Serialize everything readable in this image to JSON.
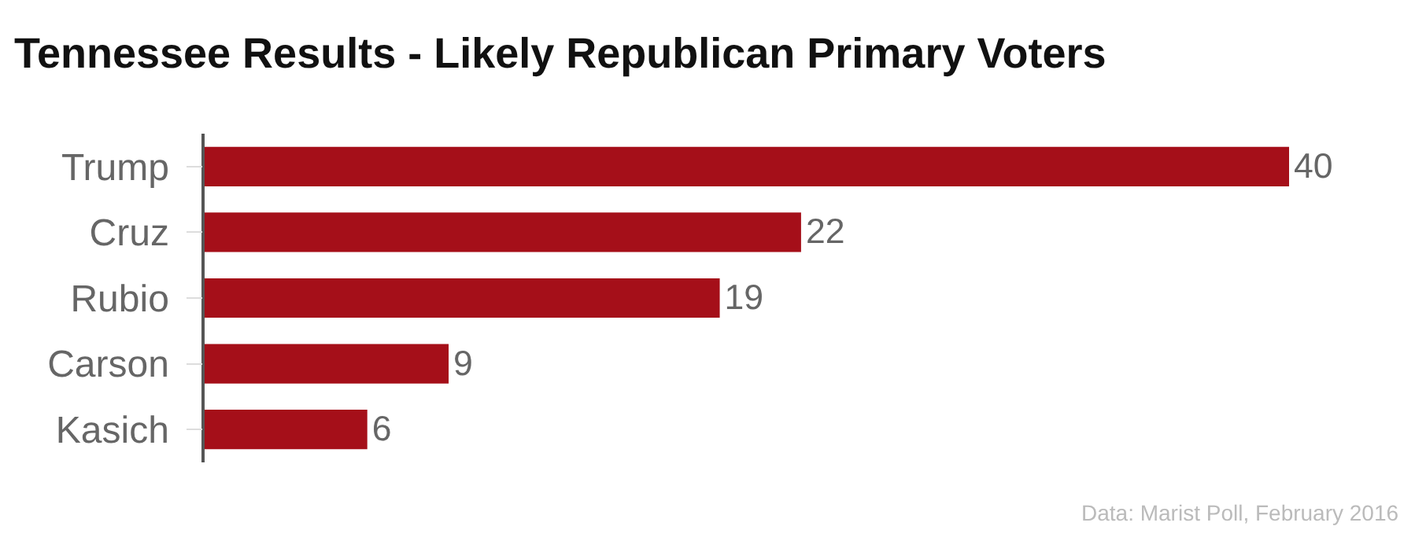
{
  "chart_data": {
    "type": "bar",
    "orientation": "horizontal",
    "title": "Tennessee Results - Likely Republican Primary Voters",
    "categories": [
      "Trump",
      "Cruz",
      "Rubio",
      "Carson",
      "Kasich"
    ],
    "values": [
      40,
      22,
      19,
      9,
      6
    ],
    "color": "#a50f19",
    "data_labels": true,
    "legend": false,
    "annotations": [
      "Data: Marist Poll, February 2016"
    ]
  }
}
